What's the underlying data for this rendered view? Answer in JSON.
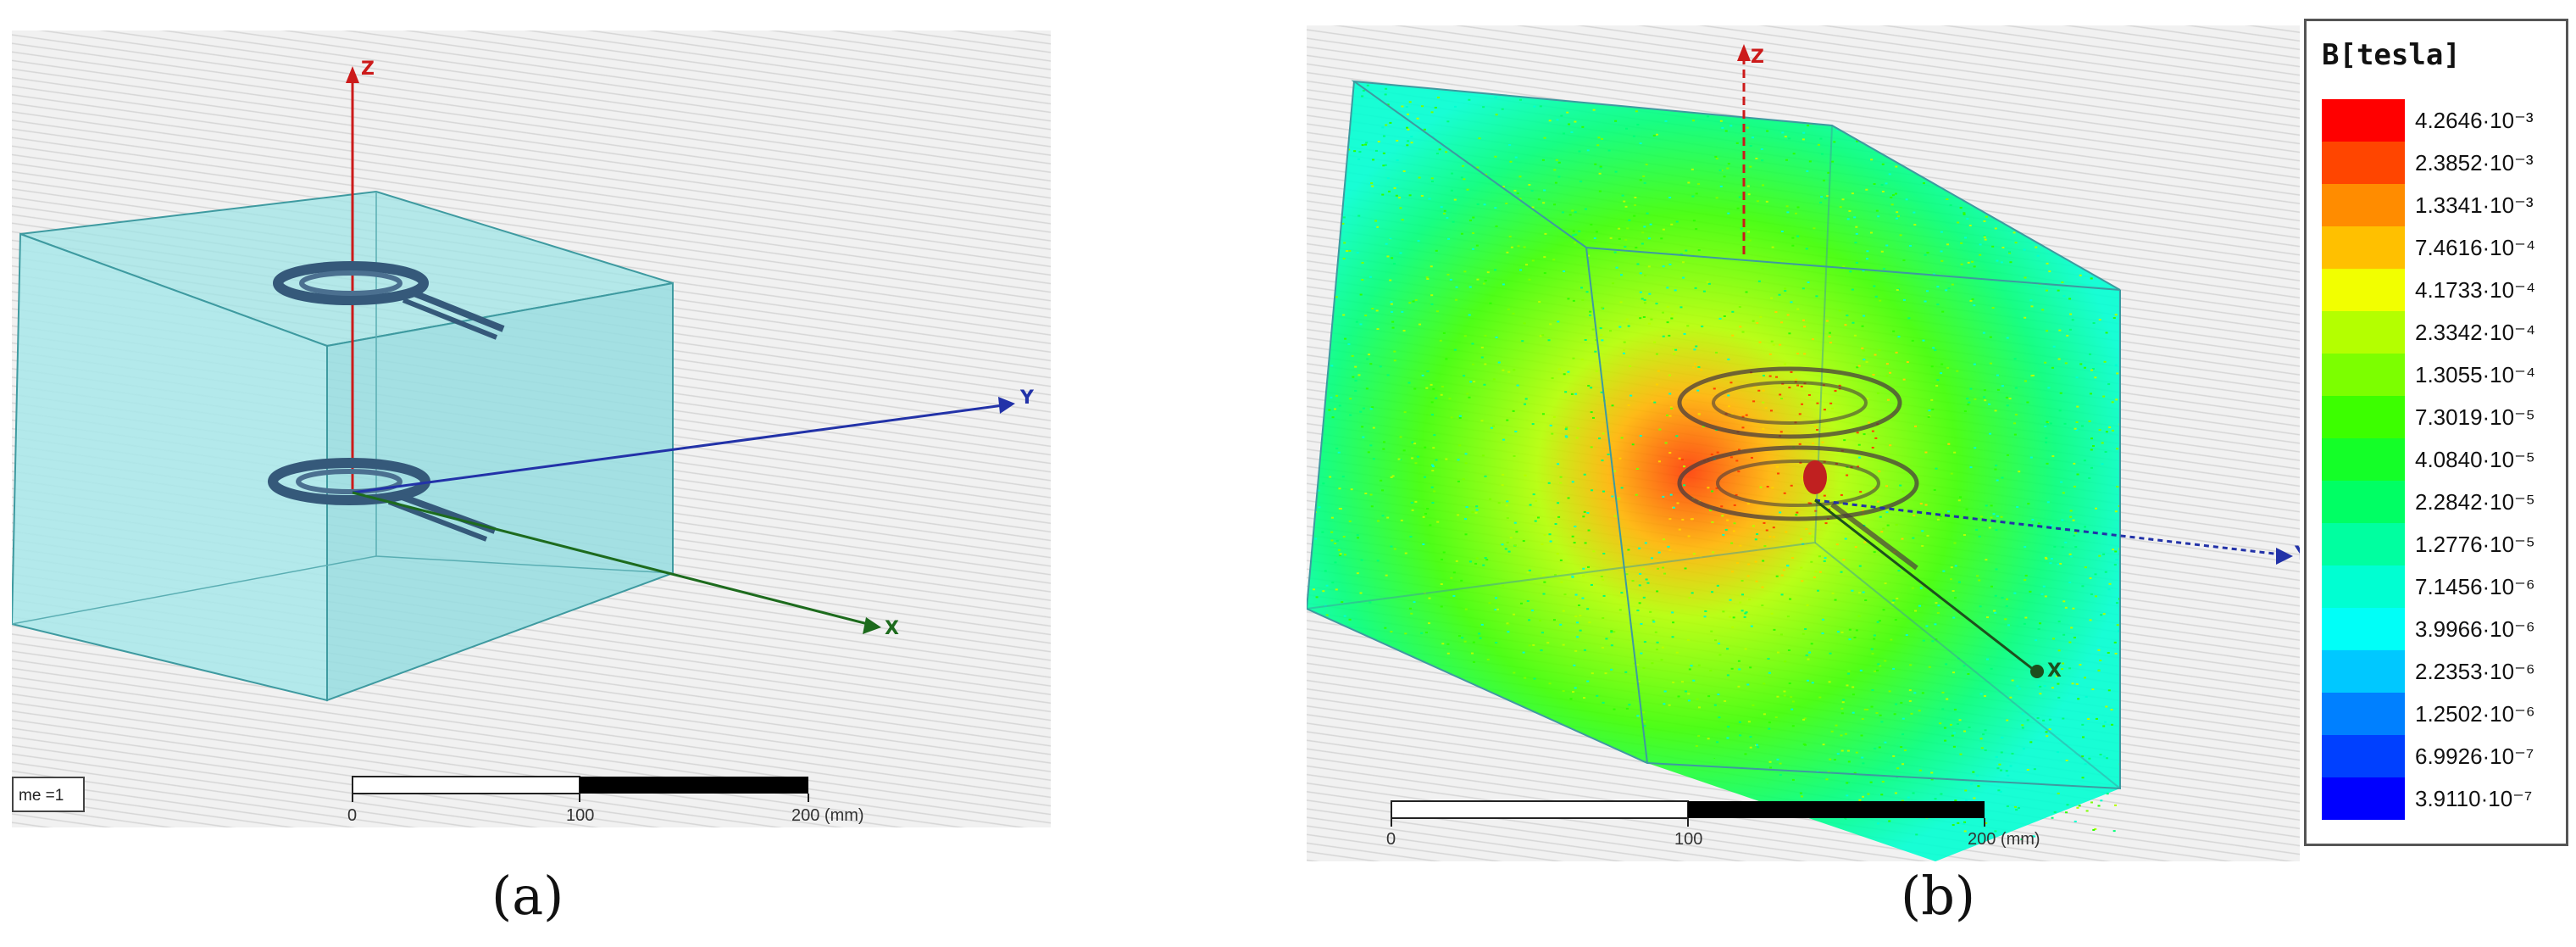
{
  "panel_a": {
    "axes": {
      "z": "Z",
      "y": "Y",
      "x": "X"
    },
    "frame_tag": "me =1",
    "scale": {
      "ticks": [
        "0",
        "100",
        "200 (mm)"
      ]
    },
    "caption": "(a)"
  },
  "panel_b": {
    "axes": {
      "z": "Z",
      "y": "Y",
      "x": "X"
    },
    "scale": {
      "ticks": [
        "0",
        "100",
        "200 (mm)"
      ]
    },
    "caption": "(b)",
    "legend": {
      "title": "B[tesla]",
      "entries": [
        {
          "value": "4.2646·10⁻³",
          "color": "#ff0000"
        },
        {
          "value": "2.3852·10⁻³",
          "color": "#ff4500"
        },
        {
          "value": "1.3341·10⁻³",
          "color": "#ff8c00"
        },
        {
          "value": "7.4616·10⁻⁴",
          "color": "#ffc000"
        },
        {
          "value": "4.1733·10⁻⁴",
          "color": "#f2ff00"
        },
        {
          "value": "2.3342·10⁻⁴",
          "color": "#b4ff00"
        },
        {
          "value": "1.3055·10⁻⁴",
          "color": "#7cff00"
        },
        {
          "value": "7.3019·10⁻⁵",
          "color": "#3cff00"
        },
        {
          "value": "4.0840·10⁻⁵",
          "color": "#14ff28"
        },
        {
          "value": "2.2842·10⁻⁵",
          "color": "#00ff64"
        },
        {
          "value": "1.2776·10⁻⁵",
          "color": "#00ffa0"
        },
        {
          "value": "7.1456·10⁻⁶",
          "color": "#00ffd2"
        },
        {
          "value": "3.9966·10⁻⁶",
          "color": "#00fff8"
        },
        {
          "value": "2.2353·10⁻⁶",
          "color": "#00c8ff"
        },
        {
          "value": "1.2502·10⁻⁶",
          "color": "#0080ff"
        },
        {
          "value": "6.9926·10⁻⁷",
          "color": "#0040ff"
        },
        {
          "value": "3.9110·10⁻⁷",
          "color": "#0000ff"
        }
      ]
    }
  }
}
